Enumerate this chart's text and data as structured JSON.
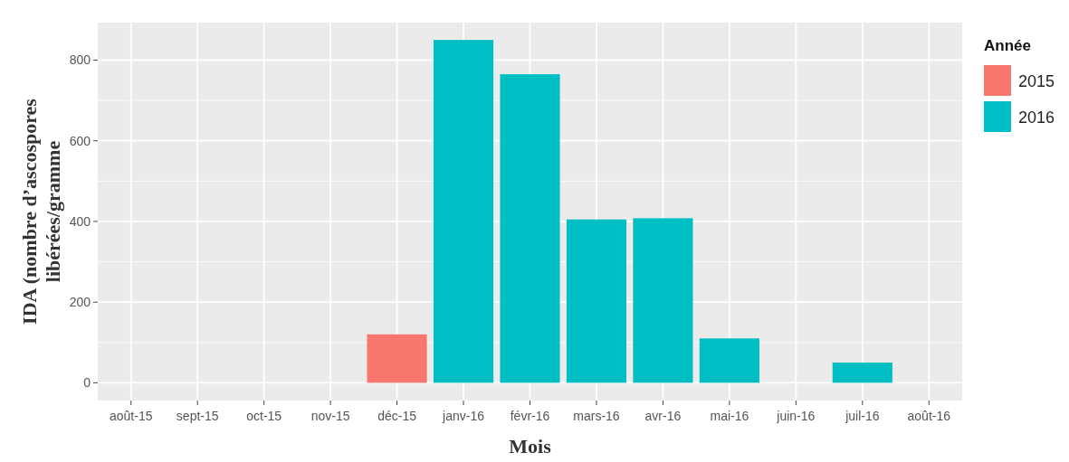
{
  "chart_data": {
    "type": "bar",
    "xlabel": "Mois",
    "ylabel": "IDA (nombre d’ascospores libérées/gramme",
    "legend_title": "Année",
    "categories": [
      "août-15",
      "sept-15",
      "oct-15",
      "nov-15",
      "déc-15",
      "janv-16",
      "févr-16",
      "mars-16",
      "avr-16",
      "mai-16",
      "juin-16",
      "juil-16",
      "août-16"
    ],
    "series": [
      {
        "name": "2015",
        "color": "#f8766d",
        "values": [
          null,
          null,
          null,
          null,
          120,
          null,
          null,
          null,
          null,
          null,
          null,
          null,
          null
        ]
      },
      {
        "name": "2016",
        "color": "#00bfc4",
        "values": [
          null,
          null,
          null,
          null,
          null,
          850,
          765,
          405,
          408,
          110,
          null,
          50,
          null
        ]
      }
    ],
    "ylim": [
      -44,
      893
    ],
    "yticks": [
      0,
      200,
      400,
      600,
      800
    ],
    "grid": true,
    "legend": "right"
  }
}
